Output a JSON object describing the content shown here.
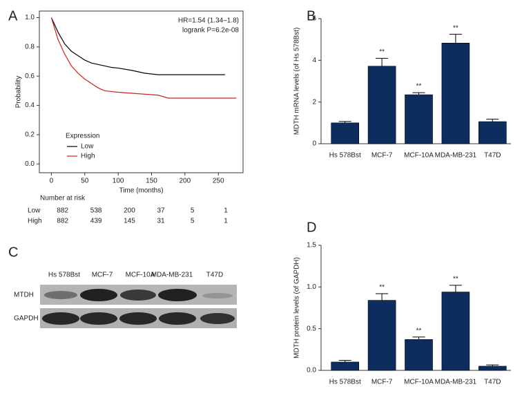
{
  "chart_data": [
    {
      "type": "line",
      "label": "A",
      "xlabel": "Time (months)",
      "ylabel": "Probability",
      "annotations": [
        "HR=1.54 (1.34–1.8)",
        "logrank P=6.2e-08"
      ],
      "legend_title": "Expression",
      "xlim": [
        -18,
        287
      ],
      "xticks": [
        0,
        50,
        100,
        150,
        200,
        250
      ],
      "ylim": [
        -0.06,
        1.045
      ],
      "yticks": [
        {
          "value": 0,
          "label": "0.0"
        },
        0.2,
        0.4,
        0.6,
        0.8,
        {
          "value": 1,
          "label": "1.0"
        }
      ],
      "series": [
        {
          "name": "Low",
          "color": "#000000",
          "x": [
            0,
            10,
            20,
            30,
            40,
            50,
            60,
            70,
            80,
            90,
            100,
            120,
            140,
            160,
            260
          ],
          "values": [
            1.0,
            0.9,
            0.82,
            0.77,
            0.74,
            0.71,
            0.69,
            0.68,
            0.67,
            0.66,
            0.655,
            0.64,
            0.62,
            0.61,
            0.61
          ]
        },
        {
          "name": "High",
          "color": "#d0201e",
          "x": [
            0,
            10,
            20,
            30,
            40,
            50,
            60,
            70,
            80,
            100,
            130,
            160,
            175,
            277
          ],
          "values": [
            1.0,
            0.85,
            0.75,
            0.67,
            0.62,
            0.58,
            0.55,
            0.52,
            0.5,
            0.49,
            0.48,
            0.47,
            0.45,
            0.45
          ]
        }
      ],
      "risk_table": {
        "title": "Number at risk",
        "rows": [
          {
            "name": "Low",
            "values": [
              882,
              538,
              200,
              37,
              5,
              1
            ]
          },
          {
            "name": "High",
            "values": [
              882,
              439,
              145,
              31,
              5,
              1
            ]
          }
        ]
      }
    },
    {
      "type": "bar",
      "label": "B",
      "ylabel": "MDTH mRNA levels (of Hs 578Bst)",
      "color": "#0d2d5e",
      "categories": [
        "Hs 578Bst",
        "MCF-7",
        "MCF-10A",
        "MDA-MB-231",
        "T47D"
      ],
      "values": [
        1.0,
        3.72,
        2.35,
        4.83,
        1.06
      ],
      "errors": [
        0.07,
        0.38,
        0.1,
        0.42,
        0.12
      ],
      "significance": [
        {
          "index": 1,
          "text": "**"
        },
        {
          "index": 2,
          "text": "**"
        },
        {
          "index": 3,
          "text": "**"
        }
      ],
      "ylim": [
        0,
        6
      ],
      "yticks": [
        0,
        2,
        4,
        6
      ]
    },
    {
      "type": "bar",
      "label": "D",
      "ylabel": "MDTH protein levels (of GAPDH)",
      "color": "#0d2d5e",
      "categories": [
        "Hs 578Bst",
        "MCF-7",
        "MCF-10A",
        "MDA-MB-231",
        "T47D"
      ],
      "values": [
        0.1,
        0.84,
        0.37,
        0.94,
        0.05
      ],
      "errors": [
        0.02,
        0.08,
        0.03,
        0.08,
        0.015
      ],
      "significance": [
        {
          "index": 1,
          "text": "**"
        },
        {
          "index": 2,
          "text": "**"
        },
        {
          "index": 3,
          "text": "**"
        }
      ],
      "ylim": [
        0,
        1.5
      ],
      "yticks": [
        {
          "value": 0,
          "label": "0.0"
        },
        0.5,
        {
          "value": 1,
          "label": "1.0"
        },
        1.5
      ]
    }
  ],
  "blot": {
    "label": "C",
    "lanes": [
      "Hs 578Bst",
      "MCF-7",
      "MCF-10A",
      "MDA-MB-231",
      "T47D"
    ],
    "rows": [
      "MTDH",
      "GAPDH"
    ]
  }
}
